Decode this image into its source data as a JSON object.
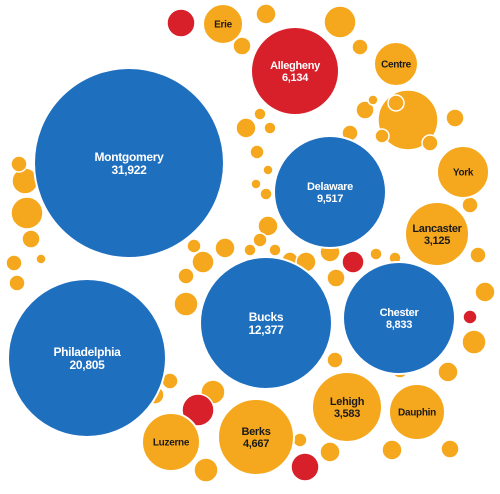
{
  "colors": {
    "blue": "#1f6fbf",
    "orange": "#f5a81d",
    "red": "#d7202a",
    "stroke": "#ffffff"
  },
  "chart_data": {
    "type": "bubble",
    "title": "",
    "series": [
      {
        "name": "Montgomery",
        "value": 31922,
        "color_key": "blue",
        "label": "Montgomery",
        "value_label": "31,922"
      },
      {
        "name": "Philadelphia",
        "value": 20805,
        "color_key": "blue",
        "label": "Philadelphia",
        "value_label": "20,805"
      },
      {
        "name": "Bucks",
        "value": 12377,
        "color_key": "blue",
        "label": "Bucks",
        "value_label": "12,377"
      },
      {
        "name": "Delaware",
        "value": 9517,
        "color_key": "blue",
        "label": "Delaware",
        "value_label": "9,517"
      },
      {
        "name": "Chester",
        "value": 8833,
        "color_key": "blue",
        "label": "Chester",
        "value_label": "8,833"
      },
      {
        "name": "Allegheny",
        "value": 6134,
        "color_key": "red",
        "label": "Allegheny",
        "value_label": "6,134"
      },
      {
        "name": "Berks",
        "value": 4667,
        "color_key": "orange",
        "label": "Berks",
        "value_label": "4,667"
      },
      {
        "name": "Lehigh",
        "value": 3583,
        "color_key": "orange",
        "label": "Lehigh",
        "value_label": "3,583"
      },
      {
        "name": "Lancaster",
        "value": 3125,
        "color_key": "orange",
        "label": "Lancaster",
        "value_label": "3,125"
      },
      {
        "name": "Luzerne",
        "color_key": "orange",
        "label": "Luzerne"
      },
      {
        "name": "Dauphin",
        "color_key": "orange",
        "label": "Dauphin"
      },
      {
        "name": "York",
        "color_key": "orange",
        "label": "York"
      },
      {
        "name": "Centre",
        "color_key": "orange",
        "label": "Centre"
      },
      {
        "name": "Erie",
        "color_key": "orange",
        "label": "Erie"
      }
    ]
  }
}
